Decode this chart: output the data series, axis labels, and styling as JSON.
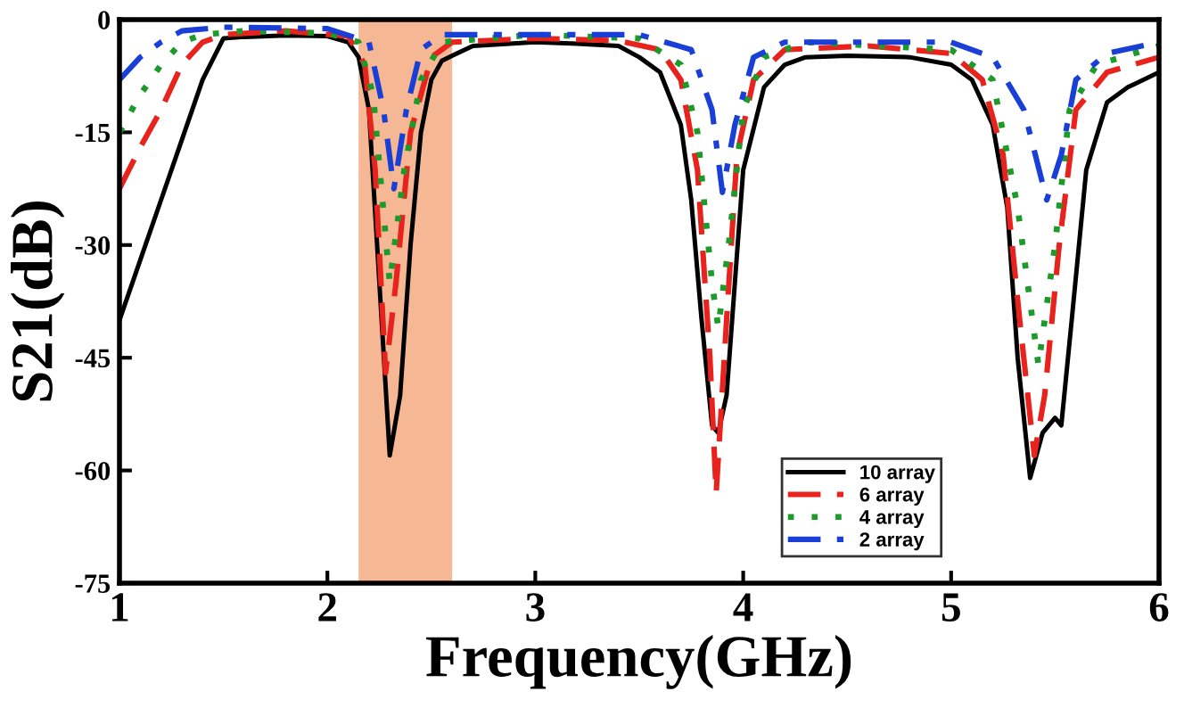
{
  "chart_data": {
    "type": "line",
    "xlabel": "Frequency(GHz)",
    "ylabel": "S21(dB)",
    "xlim": [
      1,
      6
    ],
    "xticks": [
      1,
      2,
      3,
      4,
      5,
      6
    ],
    "ylim": [
      -75,
      0
    ],
    "yticks": [
      -75,
      -60,
      -45,
      -30,
      -15,
      0
    ],
    "grid": false,
    "legend": "bottom right",
    "bands": [
      {
        "axis": "x",
        "from": 2.15,
        "to": 2.6,
        "color": "#f6b894"
      }
    ],
    "series": [
      {
        "name": "10 array",
        "color": "#000000",
        "line_style": "solid",
        "x": [
          1,
          1.1,
          1.2,
          1.3,
          1.4,
          1.5,
          1.6,
          1.8,
          2.0,
          2.1,
          2.15,
          2.2,
          2.25,
          2.3,
          2.35,
          2.4,
          2.45,
          2.5,
          2.55,
          2.6,
          2.7,
          3.0,
          3.2,
          3.4,
          3.5,
          3.6,
          3.7,
          3.75,
          3.8,
          3.85,
          3.88,
          3.92,
          3.96,
          4.0,
          4.1,
          4.2,
          4.3,
          4.5,
          4.8,
          5.0,
          5.1,
          5.2,
          5.27,
          5.32,
          5.38,
          5.44,
          5.5,
          5.53,
          5.58,
          5.65,
          5.75,
          5.85,
          6.0
        ],
        "values": [
          -40,
          -32,
          -24,
          -16,
          -8,
          -2.5,
          -2.3,
          -2.1,
          -2.2,
          -3,
          -5,
          -12,
          -35,
          -58,
          -50,
          -30,
          -15,
          -8,
          -5.5,
          -4.8,
          -3.5,
          -3,
          -3.2,
          -3.5,
          -5,
          -7,
          -14,
          -24,
          -40,
          -54,
          -55,
          -50,
          -35,
          -20,
          -9,
          -6,
          -5,
          -4.8,
          -5,
          -6,
          -8,
          -14,
          -25,
          -45,
          -61,
          -55,
          -53,
          -54,
          -40,
          -20,
          -11,
          -9,
          -7
        ]
      },
      {
        "name": "6 array",
        "color": "#e8221c",
        "line_style": "dashed",
        "x": [
          1,
          1.1,
          1.2,
          1.3,
          1.4,
          1.5,
          1.8,
          2.1,
          2.18,
          2.23,
          2.28,
          2.33,
          2.4,
          2.5,
          2.6,
          3.0,
          3.4,
          3.6,
          3.7,
          3.78,
          3.84,
          3.87,
          3.92,
          3.97,
          4.05,
          4.2,
          4.6,
          5.0,
          5.15,
          5.25,
          5.33,
          5.4,
          5.45,
          5.52,
          5.6,
          5.75,
          6.0
        ],
        "values": [
          -22.5,
          -17,
          -12,
          -6,
          -3,
          -2,
          -1.5,
          -2.2,
          -6,
          -20,
          -47,
          -35,
          -15,
          -5,
          -3,
          -2.5,
          -2.8,
          -4,
          -8,
          -20,
          -45,
          -63,
          -40,
          -18,
          -8,
          -4,
          -3.5,
          -4.5,
          -8,
          -18,
          -40,
          -58,
          -50,
          -30,
          -12,
          -7,
          -5
        ]
      },
      {
        "name": "4 array",
        "color": "#1c9a2a",
        "line_style": "dotted",
        "x": [
          1,
          1.1,
          1.2,
          1.3,
          1.4,
          1.6,
          2.0,
          2.15,
          2.22,
          2.3,
          2.37,
          2.45,
          2.55,
          3.0,
          3.5,
          3.7,
          3.78,
          3.85,
          3.88,
          3.93,
          4.0,
          4.1,
          4.3,
          5.0,
          5.2,
          5.32,
          5.42,
          5.5,
          5.57,
          5.7,
          6.0
        ],
        "values": [
          -15,
          -10,
          -6,
          -3,
          -2,
          -1.5,
          -1.8,
          -3,
          -10,
          -35,
          -20,
          -8,
          -3,
          -2,
          -2.5,
          -6,
          -15,
          -35,
          -41,
          -30,
          -12,
          -5,
          -3,
          -4,
          -8,
          -25,
          -46,
          -30,
          -12,
          -6,
          -3.5
        ]
      },
      {
        "name": "2 array",
        "color": "#1a3fd6",
        "line_style": "dashdot",
        "x": [
          1,
          1.1,
          1.2,
          1.3,
          1.5,
          2.0,
          2.2,
          2.27,
          2.32,
          2.38,
          2.45,
          2.55,
          3.5,
          3.75,
          3.85,
          3.9,
          3.96,
          4.05,
          4.2,
          5.0,
          5.2,
          5.35,
          5.46,
          5.53,
          5.6,
          5.75,
          6.0
        ],
        "values": [
          -8,
          -5,
          -3,
          -1.5,
          -1,
          -1.2,
          -3,
          -12,
          -22.5,
          -12,
          -4,
          -2,
          -2,
          -4,
          -12,
          -23,
          -14,
          -5,
          -3,
          -3,
          -5,
          -12,
          -24,
          -18,
          -8,
          -4.5,
          -3
        ]
      }
    ]
  }
}
